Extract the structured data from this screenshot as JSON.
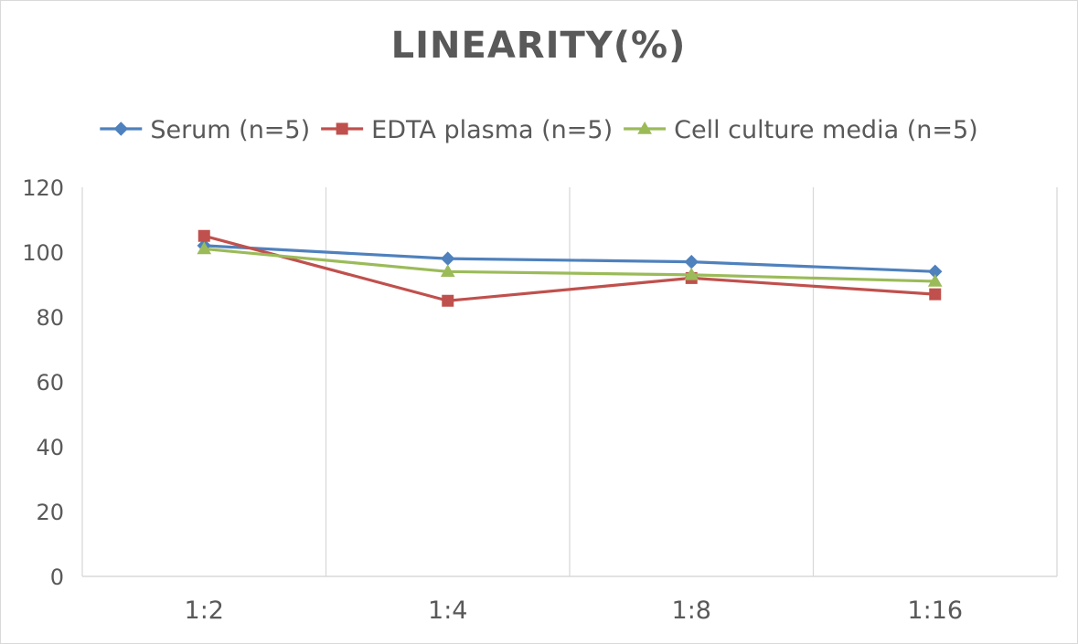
{
  "chart_data": {
    "type": "line",
    "title": "LINEARITY(%)",
    "categories": [
      "1:2",
      "1:4",
      "1:8",
      "1:16"
    ],
    "ylim": [
      0,
      120
    ],
    "yticks": [
      0,
      20,
      40,
      60,
      80,
      100,
      120
    ],
    "grid": {
      "vertical": true,
      "horizontal": false
    },
    "legend_position": "top",
    "series": [
      {
        "name": "Serum (n=5)",
        "values": [
          102,
          98,
          97,
          94
        ],
        "color": "#4f81bd",
        "marker": "diamond"
      },
      {
        "name": "EDTA plasma (n=5)",
        "values": [
          105,
          85,
          92,
          87
        ],
        "color": "#c0504d",
        "marker": "square"
      },
      {
        "name": "Cell culture media (n=5)",
        "values": [
          101,
          94,
          93,
          91
        ],
        "color": "#9bbb59",
        "marker": "triangle"
      }
    ]
  }
}
